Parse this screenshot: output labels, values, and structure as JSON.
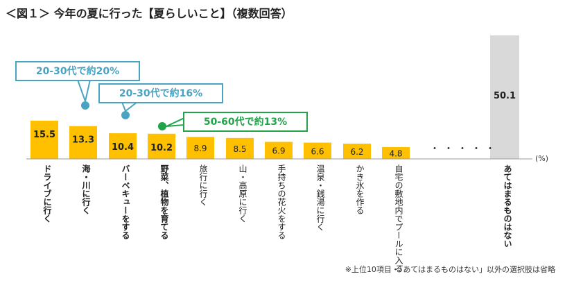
{
  "page": {
    "title": "＜図１＞ 今年の夏に行った【夏らしいこと】（複数回答）",
    "unit": "(%)",
    "footnote": "※上位10項目・「あてはまるものはない」以外の選択肢は省略",
    "ellipsis": "・・・・・"
  },
  "callouts": [
    {
      "text": "20-30代で約20%",
      "color": "#4aa3c0"
    },
    {
      "text": "20-30代で約16%",
      "color": "#4aa3c0"
    },
    {
      "text": "50-60代で約13%",
      "color": "#22a34a"
    }
  ],
  "colors": {
    "bar": "#ffc000",
    "none_bar": "#d9d9d9",
    "axis": "#999999"
  },
  "chart_data": {
    "type": "bar",
    "categories": [
      "ドライブに行く",
      "海・川に行く",
      "バーベキューをする",
      "野菜、植物を育てる",
      "旅行に行く",
      "山・高原に行く",
      "手持ちの花火をする",
      "温泉・銭湯に行く",
      "かき氷を作る",
      "自宅の敷地内でプールに入る",
      "あてはまるものはない"
    ],
    "values": [
      15.5,
      13.3,
      10.4,
      10.2,
      8.9,
      8.5,
      6.9,
      6.6,
      6.2,
      4.8,
      50.1
    ],
    "value_labels": [
      "15.5",
      "13.3",
      "10.4",
      "10.2",
      "8.9",
      "8.5",
      "6.9",
      "6.6",
      "6.2",
      "4.8",
      "50.1"
    ],
    "ylim": [
      0,
      50.1
    ]
  }
}
